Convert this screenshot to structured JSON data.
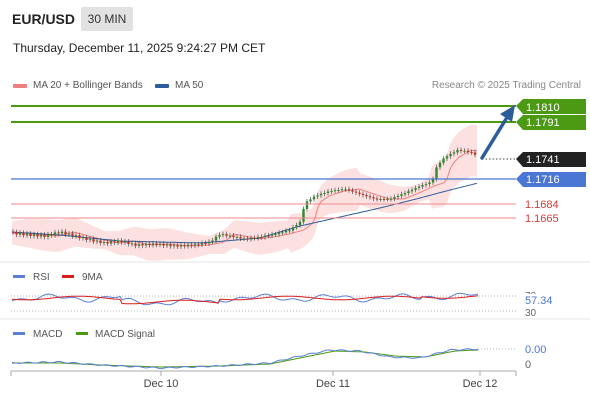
{
  "header": {
    "symbol": "EUR/USD",
    "timeframe": "30 MIN",
    "datetime": "Thursday, December 11, 2025 9:24:27 PM CET"
  },
  "legend": {
    "items": [
      {
        "label": "MA 20 + Bollinger Bands",
        "color": "#f07f7f"
      },
      {
        "label": "MA 50",
        "color": "#2c5c99"
      }
    ],
    "credit": "Research © 2025 Trading Central"
  },
  "price_levels": [
    {
      "value": "1.1810",
      "kind": "resistance",
      "color": "#4c9a14"
    },
    {
      "value": "1.1791",
      "kind": "resistance",
      "color": "#4c9a14"
    },
    {
      "value": "1.1741",
      "kind": "last",
      "color": "#222222"
    },
    {
      "value": "1.1716",
      "kind": "pivot",
      "color": "#4a77d4"
    },
    {
      "value": "1.1684",
      "kind": "support",
      "color": "#d33a3a"
    },
    {
      "value": "1.1665",
      "kind": "support",
      "color": "#d33a3a"
    }
  ],
  "rsi": {
    "label": "RSI",
    "ma_label": "9MA",
    "color": "#5b7fd6",
    "ma_color": "#d91e1e",
    "value": "57.34",
    "levels": [
      "70",
      "30"
    ]
  },
  "macd": {
    "label": "MACD",
    "signal_label": "MACD Signal",
    "color": "#5b7fd6",
    "signal_color": "#4c9a14",
    "value": "0.00",
    "zero_label": "0"
  },
  "x_axis": {
    "labels": [
      "Dec 10",
      "Dec 11",
      "Dec 12"
    ]
  }
}
